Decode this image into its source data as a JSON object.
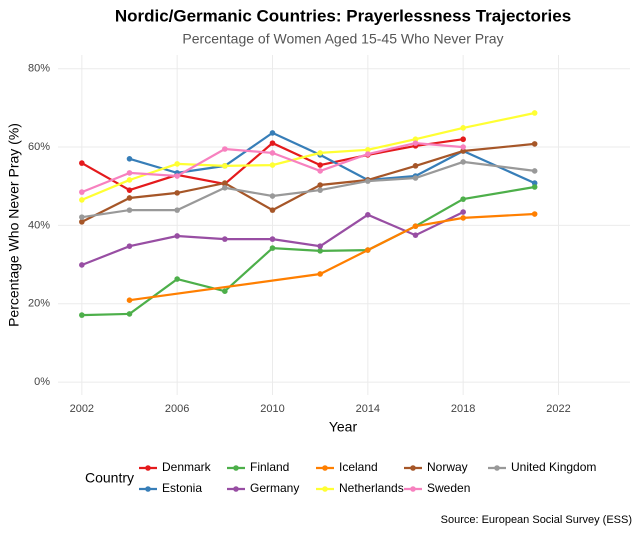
{
  "chart_data": {
    "type": "line",
    "title": "Nordic/Germanic Countries: Prayerlessness Trajectories",
    "subtitle": "Percentage of Women Aged 15-45 Who Never Pray",
    "x_label": "Year",
    "y_label": "Percentage Who Never Pray (%)",
    "legend_title": "Country",
    "caption": "Source: European Social Survey (ESS)",
    "xlim": [
      2001,
      2025
    ],
    "xticks": [
      2002,
      2006,
      2010,
      2014,
      2018,
      2022
    ],
    "ylim": [
      -3.3,
      83.5
    ],
    "yticks": [
      {
        "value": 0,
        "label": "0%"
      },
      {
        "value": 20,
        "label": "20%"
      },
      {
        "value": 40,
        "label": "40%"
      },
      {
        "value": 60,
        "label": "60%"
      },
      {
        "value": 80,
        "label": "80%"
      }
    ],
    "grid": true,
    "series": [
      {
        "name": "Denmark",
        "color": "#E41A1C",
        "x": [
          2002,
          2004,
          2006,
          2008,
          2010,
          2012,
          2014,
          2016,
          2018
        ],
        "values": [
          55.9,
          49,
          52.9,
          50.6,
          61,
          55.4,
          58,
          60.3,
          62
        ]
      },
      {
        "name": "Estonia",
        "color": "#377EB8",
        "x": [
          2004,
          2006,
          2008,
          2010,
          2012,
          2014,
          2016,
          2018,
          2021
        ],
        "values": [
          57,
          53.4,
          55.2,
          63.6,
          58,
          51.6,
          52.6,
          59,
          50.8
        ]
      },
      {
        "name": "Finland",
        "color": "#4DAF4A",
        "x": [
          2002,
          2004,
          2006,
          2008,
          2010,
          2012,
          2014,
          2016,
          2018,
          2021
        ],
        "values": [
          17.1,
          17.4,
          26.3,
          23.2,
          34.2,
          33.5,
          33.7,
          39.8,
          46.7,
          49.8
        ]
      },
      {
        "name": "Germany",
        "color": "#984EA3",
        "x": [
          2002,
          2004,
          2006,
          2008,
          2010,
          2012,
          2014,
          2016,
          2018
        ],
        "values": [
          29.9,
          34.7,
          37.3,
          36.5,
          36.5,
          34.7,
          42.7,
          37.5,
          43.4
        ]
      },
      {
        "name": "Iceland",
        "color": "#FF7F00",
        "x": [
          2004,
          2012,
          2014,
          2016,
          2018,
          2021
        ],
        "values": [
          20.9,
          27.6,
          33.7,
          39.8,
          41.9,
          42.9
        ]
      },
      {
        "name": "Netherlands",
        "color": "#FFFF33",
        "x": [
          2002,
          2004,
          2006,
          2008,
          2010,
          2012,
          2014,
          2016,
          2018,
          2021
        ],
        "values": [
          46.5,
          51.6,
          55.7,
          55.2,
          55.4,
          58.5,
          59.3,
          62,
          64.9,
          68.7
        ]
      },
      {
        "name": "Norway",
        "color": "#A65628",
        "x": [
          2002,
          2004,
          2006,
          2008,
          2010,
          2012,
          2014,
          2016,
          2018,
          2021
        ],
        "values": [
          40.9,
          47,
          48.3,
          50.8,
          43.9,
          50.3,
          51.6,
          55.2,
          59,
          60.8
        ]
      },
      {
        "name": "Sweden",
        "color": "#F781BF",
        "x": [
          2002,
          2004,
          2006,
          2008,
          2010,
          2012,
          2014,
          2016,
          2018
        ],
        "values": [
          48.5,
          53.4,
          52.6,
          59.5,
          58.5,
          53.9,
          58.2,
          61,
          60
        ]
      },
      {
        "name": "United Kingdom",
        "color": "#999999",
        "x": [
          2002,
          2004,
          2006,
          2008,
          2010,
          2012,
          2014,
          2016,
          2018,
          2021
        ],
        "values": [
          42.1,
          43.9,
          43.9,
          49.6,
          47.5,
          49,
          51.3,
          52.1,
          56.2,
          53.9
        ]
      }
    ]
  }
}
